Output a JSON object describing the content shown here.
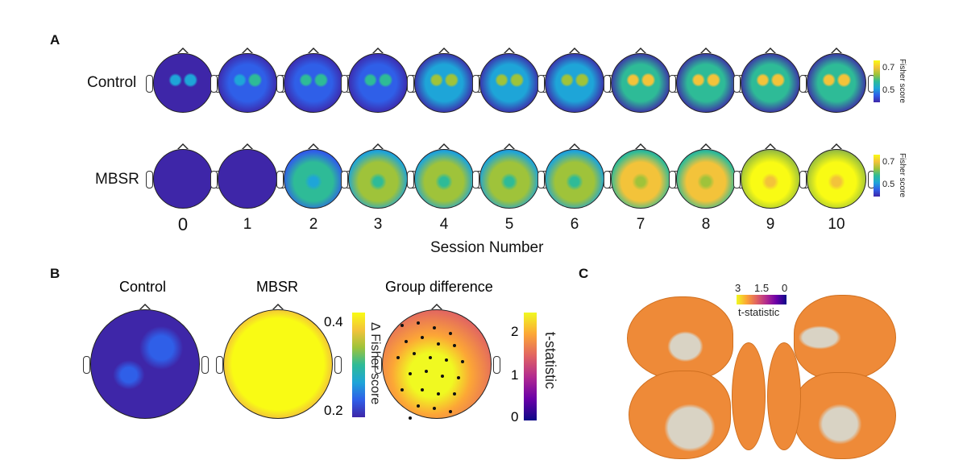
{
  "panels": {
    "a": "A",
    "b": "B",
    "c": "C"
  },
  "panel_a": {
    "row_labels": [
      "Control",
      "MBSR"
    ],
    "sessions": [
      "0",
      "1",
      "2",
      "3",
      "4",
      "5",
      "6",
      "7",
      "8",
      "9",
      "10"
    ],
    "xlabel": "Session Number",
    "colorbar": {
      "label": "Fisher score",
      "ticks": [
        "0.7",
        "0.5"
      ]
    }
  },
  "panel_b": {
    "titles": [
      "Control",
      "MBSR",
      "Group difference"
    ],
    "colorbar1": {
      "label": "Δ Fisher score",
      "ticks": [
        "0.4",
        "0.2"
      ]
    },
    "colorbar2": {
      "label": "t-statistic",
      "ticks": [
        "2",
        "1",
        "0"
      ]
    }
  },
  "panel_c": {
    "colorbar": {
      "label": "t-statistic",
      "ticks": [
        "3",
        "1.5",
        "0"
      ]
    }
  },
  "chart_data": {
    "type": "heatmap",
    "panel_a": {
      "sessions": [
        0,
        1,
        2,
        3,
        4,
        5,
        6,
        7,
        8,
        9,
        10
      ],
      "rows": [
        "Control",
        "MBSR"
      ],
      "xlabel": "Session Number",
      "colorbar_label": "Fisher score",
      "colorbar_ticks": [
        0.5,
        0.7
      ],
      "colormap": "parula",
      "mean_level_control": [
        0.05,
        0.15,
        0.2,
        0.25,
        0.35,
        0.35,
        0.4,
        0.5,
        0.5,
        0.55,
        0.5
      ],
      "mean_level_mbsr": [
        0.0,
        0.1,
        0.55,
        0.6,
        0.65,
        0.7,
        0.65,
        0.8,
        0.85,
        0.9,
        0.9
      ]
    },
    "panel_b": {
      "maps": [
        "Control",
        "MBSR",
        "Group difference"
      ],
      "colorbar1_label": "Δ Fisher score",
      "colorbar1_ticks": [
        0.2,
        0.4
      ],
      "colorbar2_label": "t-statistic",
      "colorbar2_ticks": [
        0,
        1,
        2
      ],
      "colormap2": "plasma"
    },
    "panel_c": {
      "colorbar_label": "t-statistic",
      "colorbar_ticks": [
        3,
        1.5,
        0
      ]
    }
  },
  "colors": {
    "parula": [
      "#3e26a8",
      "#2f5fe8",
      "#1ea5d8",
      "#2ebb97",
      "#9fc33a",
      "#f3c33a",
      "#f9fb14"
    ],
    "plasma": [
      "#0d0887",
      "#6a00a8",
      "#b12a90",
      "#e16462",
      "#fca636",
      "#f0f921"
    ],
    "brain_orange": "#ee8a38",
    "brain_gray": "#d9d3c4"
  }
}
